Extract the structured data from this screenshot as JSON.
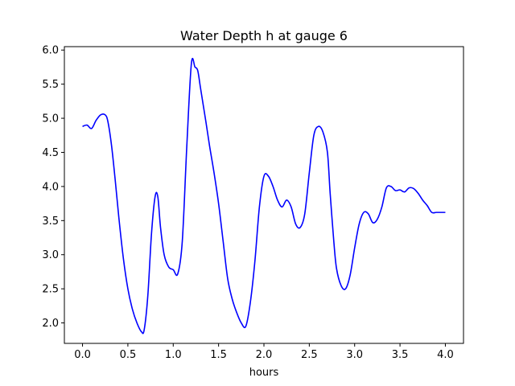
{
  "chart_data": {
    "type": "line",
    "title": "Water Depth h at gauge 6",
    "xlabel": "hours",
    "ylabel": "",
    "xlim": [
      -0.2,
      4.2
    ],
    "ylim": [
      1.7,
      6.05
    ],
    "xticks": [
      "0.0",
      "0.5",
      "1.0",
      "1.5",
      "2.0",
      "2.5",
      "3.0",
      "3.5",
      "4.0"
    ],
    "yticks": [
      "2.0",
      "2.5",
      "3.0",
      "3.5",
      "4.0",
      "4.5",
      "5.0",
      "5.5",
      "6.0"
    ],
    "grid": false,
    "series": [
      {
        "color": "#0000ff",
        "x": [
          0.0,
          0.05,
          0.1,
          0.15,
          0.2,
          0.25,
          0.28,
          0.32,
          0.36,
          0.4,
          0.45,
          0.5,
          0.55,
          0.6,
          0.65,
          0.68,
          0.72,
          0.76,
          0.8,
          0.83,
          0.86,
          0.9,
          0.95,
          1.0,
          1.05,
          1.1,
          1.15,
          1.2,
          1.24,
          1.27,
          1.3,
          1.33,
          1.36,
          1.4,
          1.45,
          1.5,
          1.55,
          1.6,
          1.65,
          1.7,
          1.75,
          1.8,
          1.85,
          1.9,
          1.95,
          2.0,
          2.05,
          2.1,
          2.15,
          2.2,
          2.25,
          2.3,
          2.35,
          2.4,
          2.45,
          2.5,
          2.55,
          2.6,
          2.65,
          2.7,
          2.73,
          2.77,
          2.8,
          2.85,
          2.9,
          2.95,
          3.0,
          3.05,
          3.1,
          3.15,
          3.2,
          3.25,
          3.3,
          3.35,
          3.4,
          3.45,
          3.5,
          3.55,
          3.6,
          3.65,
          3.7,
          3.75,
          3.8,
          3.85,
          3.9,
          3.95,
          4.0
        ],
        "y": [
          4.88,
          4.9,
          4.85,
          4.97,
          5.05,
          5.05,
          4.95,
          4.6,
          4.1,
          3.55,
          2.95,
          2.5,
          2.2,
          2.0,
          1.87,
          1.9,
          2.4,
          3.3,
          3.85,
          3.85,
          3.4,
          3.0,
          2.82,
          2.78,
          2.72,
          3.2,
          4.6,
          5.8,
          5.75,
          5.7,
          5.45,
          5.2,
          4.95,
          4.6,
          4.2,
          3.75,
          3.2,
          2.65,
          2.35,
          2.15,
          2.0,
          1.95,
          2.3,
          2.9,
          3.7,
          4.15,
          4.15,
          4.0,
          3.8,
          3.7,
          3.8,
          3.7,
          3.45,
          3.4,
          3.6,
          4.2,
          4.75,
          4.88,
          4.8,
          4.5,
          3.9,
          3.2,
          2.8,
          2.55,
          2.5,
          2.7,
          3.1,
          3.45,
          3.62,
          3.6,
          3.47,
          3.52,
          3.7,
          3.98,
          4.0,
          3.94,
          3.95,
          3.92,
          3.98,
          3.97,
          3.9,
          3.8,
          3.72,
          3.62,
          3.62,
          3.62,
          3.62
        ]
      }
    ]
  }
}
